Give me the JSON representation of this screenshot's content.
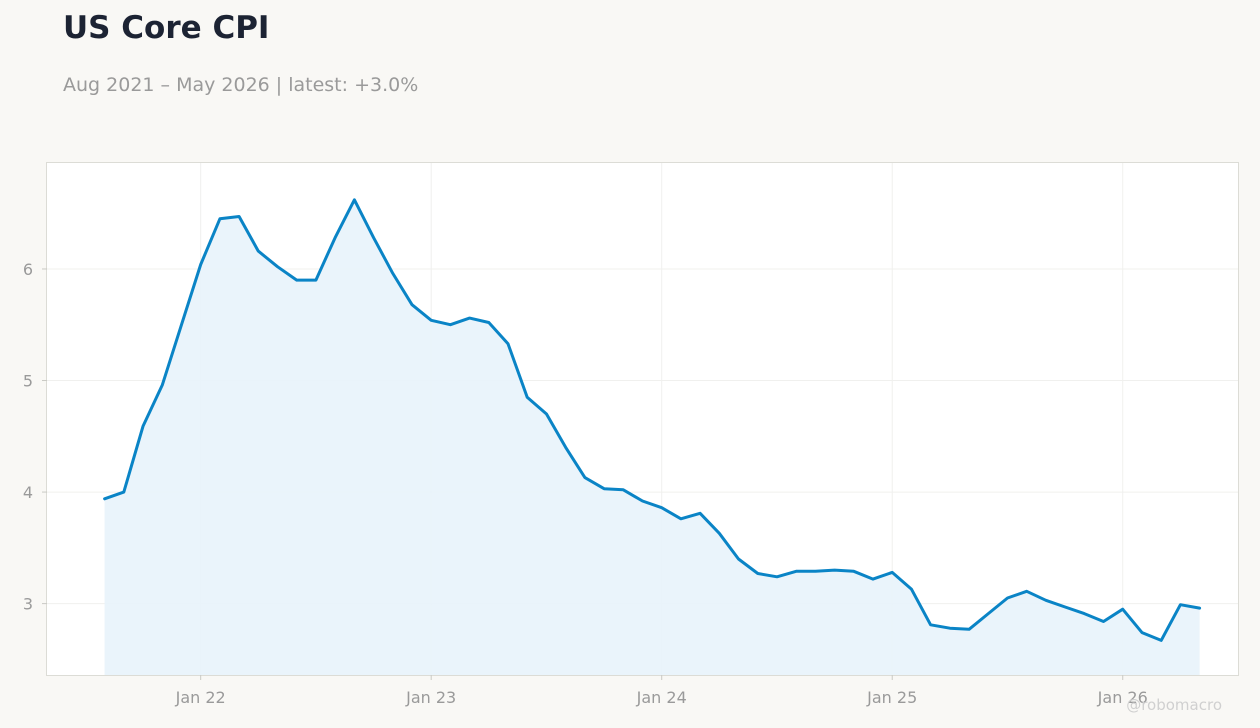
{
  "header": {
    "title": "US Core CPI",
    "subtitle": "Aug 2021 – May 2026 | latest: +3.0%"
  },
  "watermark": "@robomacro",
  "colors": {
    "background": "#f9f8f5",
    "line": "#0a84c6",
    "fill": "#e8f3fb",
    "title": "#1c2333",
    "muted": "#9a9a9a"
  },
  "chart_data": {
    "type": "area",
    "title": "US Core CPI",
    "subtitle": "Aug 2021 – May 2026 | latest: +3.0%",
    "xlabel": "",
    "ylabel": "",
    "x_ticks": [
      {
        "date": "2022-01",
        "label": "Jan 22"
      },
      {
        "date": "2023-01",
        "label": "Jan 23"
      },
      {
        "date": "2024-01",
        "label": "Jan 24"
      },
      {
        "date": "2025-01",
        "label": "Jan 25"
      },
      {
        "date": "2026-01",
        "label": "Jan 26"
      }
    ],
    "y_ticks": [
      3,
      4,
      5,
      6
    ],
    "xlim": [
      "2021-05",
      "2026-07"
    ],
    "ylim": [
      2.36,
      6.95
    ],
    "grid": true,
    "series": [
      {
        "x": [
          "2021-08",
          "2021-09",
          "2021-10",
          "2021-11",
          "2021-12",
          "2022-01",
          "2022-02",
          "2022-03",
          "2022-04",
          "2022-05",
          "2022-06",
          "2022-07",
          "2022-08",
          "2022-09",
          "2022-10",
          "2022-11",
          "2022-12",
          "2023-01",
          "2023-02",
          "2023-03",
          "2023-04",
          "2023-05",
          "2023-06",
          "2023-07",
          "2023-08",
          "2023-09",
          "2023-10",
          "2023-11",
          "2023-12",
          "2024-01",
          "2024-02",
          "2024-03",
          "2024-04",
          "2024-05",
          "2024-06",
          "2024-07",
          "2024-08",
          "2024-09",
          "2024-10",
          "2024-11",
          "2024-12",
          "2025-01",
          "2025-02",
          "2025-03",
          "2025-04",
          "2025-05",
          "2025-06",
          "2025-07",
          "2025-08",
          "2025-09",
          "2025-10",
          "2025-11",
          "2025-12",
          "2026-01",
          "2026-02",
          "2026-03",
          "2026-04",
          "2026-05"
        ],
        "values": [
          3.94,
          4.0,
          4.59,
          4.96,
          5.5,
          6.04,
          6.45,
          6.47,
          6.16,
          6.02,
          5.9,
          5.9,
          6.28,
          6.62,
          6.28,
          5.96,
          5.68,
          5.54,
          5.5,
          5.56,
          5.52,
          5.33,
          4.85,
          4.7,
          4.4,
          4.13,
          4.03,
          4.02,
          3.92,
          3.86,
          3.76,
          3.81,
          3.63,
          3.4,
          3.27,
          3.24,
          3.29,
          3.29,
          3.3,
          3.29,
          3.22,
          3.28,
          3.13,
          2.81,
          2.78,
          2.77,
          2.91,
          3.05,
          3.11,
          3.03,
          2.97,
          2.91,
          2.84,
          2.95,
          2.74,
          2.67,
          2.99,
          2.96
        ]
      }
    ]
  }
}
